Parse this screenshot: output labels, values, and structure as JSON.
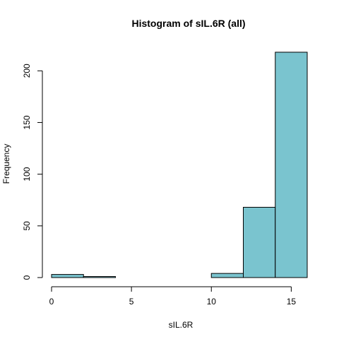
{
  "chart_data": {
    "type": "bar",
    "title": "Histogram of sIL.6R (all)",
    "xlabel": "sIL.6R",
    "ylabel": "Frequency",
    "bin_edges": [
      0,
      2,
      4,
      6,
      8,
      10,
      12,
      14,
      16
    ],
    "values": [
      3,
      1,
      0,
      0,
      0,
      4,
      68,
      218
    ],
    "xlim": [
      0,
      16
    ],
    "ylim": [
      0,
      220
    ],
    "x_ticks": [
      0,
      5,
      10,
      15
    ],
    "y_ticks": [
      0,
      50,
      100,
      150,
      200
    ],
    "bar_color": "#7AC4CF",
    "grid": false
  }
}
